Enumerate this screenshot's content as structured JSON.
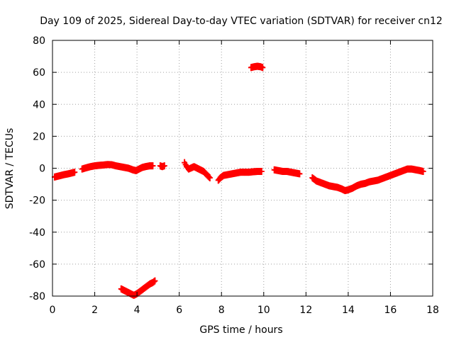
{
  "chart_data": {
    "type": "scatter",
    "title": "Day 109 of 2025, Sidereal Day-to-day VTEC variation (SDTVAR) for receiver cn12",
    "xlabel": "GPS time / hours",
    "ylabel": "SDTVAR / TECUs",
    "xlim": [
      0,
      18
    ],
    "ylim": [
      -80,
      80
    ],
    "xticks": [
      "0",
      "2",
      "4",
      "6",
      "8",
      "10",
      "12",
      "14",
      "16",
      "18"
    ],
    "yticks": [
      "80",
      "60",
      "40",
      "20",
      "0",
      "-20",
      "-40",
      "-60",
      "-80"
    ],
    "grid": true,
    "marker": "plus",
    "series": [
      {
        "name": "SDTVAR",
        "color": "#ff0000",
        "points": [
          [
            0.1,
            -5.5
          ],
          [
            0.25,
            -5.0
          ],
          [
            0.4,
            -4.5
          ],
          [
            0.55,
            -4.0
          ],
          [
            0.75,
            -3.5
          ],
          [
            0.9,
            -3.0
          ],
          [
            1.05,
            -2.5
          ],
          [
            1.4,
            -0.5
          ],
          [
            1.6,
            0.3
          ],
          [
            1.8,
            1.0
          ],
          [
            2.0,
            1.5
          ],
          [
            2.2,
            1.8
          ],
          [
            2.4,
            2.0
          ],
          [
            2.6,
            2.3
          ],
          [
            2.8,
            2.2
          ],
          [
            3.0,
            1.5
          ],
          [
            3.2,
            1.0
          ],
          [
            3.4,
            0.5
          ],
          [
            3.6,
            0.0
          ],
          [
            3.8,
            -1.0
          ],
          [
            3.95,
            -1.5
          ],
          [
            4.1,
            -0.5
          ],
          [
            4.25,
            0.5
          ],
          [
            4.4,
            1.0
          ],
          [
            4.6,
            1.5
          ],
          [
            4.75,
            1.5
          ],
          [
            5.1,
            1.5
          ],
          [
            5.2,
            1.0
          ],
          [
            5.3,
            1.5
          ],
          [
            6.25,
            3.5
          ],
          [
            6.35,
            1.0
          ],
          [
            6.45,
            -0.5
          ],
          [
            6.7,
            1.0
          ],
          [
            6.85,
            0.0
          ],
          [
            7.0,
            -1.0
          ],
          [
            7.15,
            -2.0
          ],
          [
            7.3,
            -4.0
          ],
          [
            7.45,
            -6.0
          ],
          [
            7.85,
            -7.5
          ],
          [
            7.95,
            -6.0
          ],
          [
            8.1,
            -4.5
          ],
          [
            8.3,
            -4.0
          ],
          [
            8.5,
            -3.5
          ],
          [
            8.7,
            -3.0
          ],
          [
            8.9,
            -2.5
          ],
          [
            9.1,
            -2.5
          ],
          [
            9.3,
            -2.5
          ],
          [
            9.5,
            -2.2
          ],
          [
            9.7,
            -2.0
          ],
          [
            9.9,
            -2.0
          ],
          [
            9.4,
            63.0
          ],
          [
            9.55,
            63.5
          ],
          [
            9.7,
            63.8
          ],
          [
            9.85,
            63.5
          ],
          [
            9.95,
            63.0
          ],
          [
            10.5,
            -1.0
          ],
          [
            10.7,
            -1.5
          ],
          [
            10.9,
            -2.0
          ],
          [
            11.1,
            -2.0
          ],
          [
            11.3,
            -2.5
          ],
          [
            11.5,
            -3.0
          ],
          [
            11.7,
            -3.5
          ],
          [
            12.3,
            -6.0
          ],
          [
            12.5,
            -8.0
          ],
          [
            12.7,
            -9.0
          ],
          [
            12.9,
            -10.0
          ],
          [
            13.1,
            -11.0
          ],
          [
            13.3,
            -11.5
          ],
          [
            13.5,
            -12.0
          ],
          [
            13.7,
            -13.0
          ],
          [
            13.85,
            -14.0
          ],
          [
            14.0,
            -13.5
          ],
          [
            14.2,
            -12.5
          ],
          [
            14.4,
            -11.0
          ],
          [
            14.6,
            -10.0
          ],
          [
            14.8,
            -9.5
          ],
          [
            15.0,
            -8.5
          ],
          [
            15.2,
            -8.0
          ],
          [
            15.4,
            -7.5
          ],
          [
            15.6,
            -6.5
          ],
          [
            15.8,
            -5.5
          ],
          [
            16.0,
            -4.5
          ],
          [
            16.2,
            -3.5
          ],
          [
            16.4,
            -2.5
          ],
          [
            16.6,
            -1.5
          ],
          [
            16.8,
            -0.5
          ],
          [
            17.0,
            -0.5
          ],
          [
            17.2,
            -1.0
          ],
          [
            17.4,
            -1.5
          ],
          [
            17.55,
            -2.0
          ],
          [
            3.25,
            -75.5
          ],
          [
            3.4,
            -76.5
          ],
          [
            3.55,
            -77.5
          ],
          [
            3.7,
            -78.5
          ],
          [
            3.85,
            -79.5
          ],
          [
            4.0,
            -78.5
          ],
          [
            4.15,
            -77.0
          ],
          [
            4.3,
            -75.5
          ],
          [
            4.45,
            -74.0
          ],
          [
            4.6,
            -72.5
          ],
          [
            4.75,
            -71.5
          ],
          [
            4.85,
            -70.5
          ]
        ]
      }
    ]
  }
}
